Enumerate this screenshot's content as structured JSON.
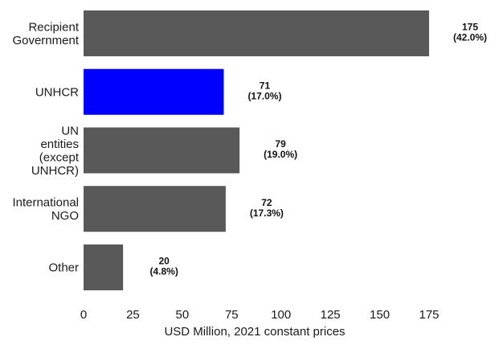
{
  "chart_data": {
    "type": "bar",
    "orientation": "horizontal",
    "categories": [
      [
        "Recipient",
        "Government"
      ],
      [
        "UNHCR"
      ],
      [
        "UN",
        "entities",
        "(except",
        "UNHCR)"
      ],
      [
        "International",
        "NGO"
      ],
      [
        "Other"
      ]
    ],
    "values": [
      175,
      71,
      79,
      72,
      20
    ],
    "value_labels": [
      "175",
      "71",
      "79",
      "72",
      "20"
    ],
    "percent_labels": [
      "(42.0%)",
      "(17.0%)",
      "(19.0%)",
      "(17.3%)",
      "(4.8%)"
    ],
    "highlight_index": 1,
    "colors": {
      "default": "#595959",
      "highlight": "#0000ff"
    },
    "xlabel": "USD Million, 2021 constant prices",
    "ylabel": "",
    "title": "",
    "xlim": [
      0,
      175
    ],
    "xticks": [
      0,
      25,
      50,
      75,
      100,
      125,
      150,
      175
    ],
    "grid": false,
    "legend": "none"
  }
}
